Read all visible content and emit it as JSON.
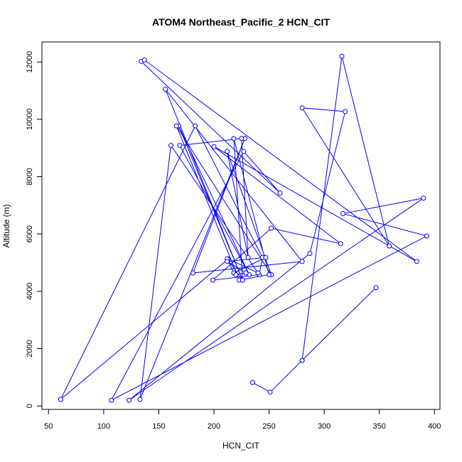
{
  "chart_data": {
    "type": "line",
    "title": "ATOM4 Northeast_Pacific_2 HCN_CIT",
    "xlabel": "HCN_CIT",
    "ylabel": "Altitude (m)",
    "xlim": [
      44,
      405
    ],
    "ylim": [
      -120,
      12700
    ],
    "xticks": [
      50,
      100,
      150,
      200,
      250,
      300,
      350,
      400
    ],
    "yticks": [
      0,
      2000,
      4000,
      6000,
      8000,
      10000,
      12000
    ],
    "grid": false,
    "legend": "none",
    "series_color": "#0000ff",
    "marker": "open-circle",
    "series": [
      {
        "x": [
          235,
          251,
          280,
          347,
          280,
          316,
          359,
          280,
          319,
          287,
          123,
          390,
          317,
          393,
          107,
          227,
          260,
          134,
          137,
          384,
          200,
          315,
          252,
          199,
          241,
          244,
          183,
          61,
          213,
          240,
          161,
          133,
          228,
          181,
          280,
          156,
          226,
          168,
          232,
          169,
          225,
          231,
          212,
          252,
          166,
          223,
          250,
          218,
          226,
          212,
          218,
          247,
          212,
          229,
          220
        ],
        "y": [
          820,
          480,
          1590,
          4130,
          1590,
          12200,
          5580,
          10400,
          10270,
          5320,
          200,
          7250,
          6710,
          5930,
          200,
          8880,
          7430,
          12020,
          12070,
          5040,
          9050,
          5660,
          6200,
          4390,
          4580,
          5180,
          9770,
          230,
          5130,
          4640,
          9090,
          230,
          9330,
          4640,
          5040,
          11050,
          4390,
          9770,
          4580,
          9090,
          9330,
          5180,
          8880,
          4580,
          9770,
          4390,
          4580,
          9330,
          4390,
          5130,
          4640,
          5180,
          5040,
          4640,
          4580
        ]
      }
    ]
  }
}
